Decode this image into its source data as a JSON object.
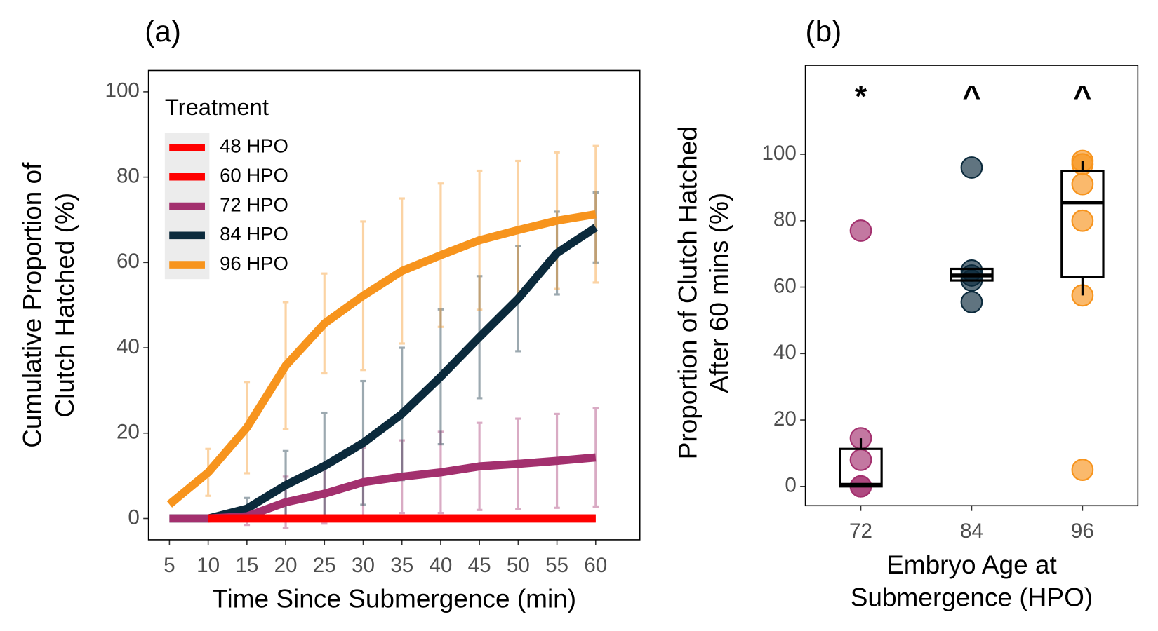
{
  "chart_data": [
    {
      "type": "line",
      "panel_label": "(a)",
      "x_label": "Time Since Submergence (min)",
      "y_label": [
        "Cumulative Proportion of",
        "Clutch Hatched (%)"
      ],
      "legend_title": "Treatment",
      "legend": "top-left",
      "x": [
        5,
        10,
        15,
        20,
        25,
        30,
        35,
        40,
        45,
        50,
        55,
        60
      ],
      "xlim": [
        2.3,
        65.7
      ],
      "xticks": [
        5,
        10,
        15,
        20,
        25,
        30,
        35,
        40,
        45,
        50,
        55,
        60
      ],
      "ylim": [
        -5,
        105
      ],
      "yticks": [
        0,
        20,
        40,
        60,
        80,
        100
      ],
      "series": [
        {
          "name": "48 HPO",
          "color": "#ff0000",
          "values": [
            null,
            0,
            0,
            0,
            0,
            0,
            0,
            0,
            0,
            0,
            0,
            0
          ]
        },
        {
          "name": "60 HPO",
          "color": "#ff0000",
          "values": [
            null,
            0,
            0,
            0,
            0,
            0,
            0,
            0,
            0,
            0,
            0,
            0
          ]
        },
        {
          "name": "72 HPO",
          "color": "#a3306e",
          "values": [
            0,
            0,
            0.5,
            3.8,
            5.8,
            8.5,
            9.8,
            10.8,
            12.2,
            12.8,
            13.5,
            14.3
          ],
          "errors": [
            null,
            null,
            2,
            6,
            7,
            8,
            8.5,
            9.5,
            10.2,
            10.6,
            11,
            11.5
          ]
        },
        {
          "name": "84 HPO",
          "color": "#0b2a3c",
          "values": [
            0,
            0,
            2.3,
            7.8,
            12.3,
            17.7,
            24.5,
            33.2,
            42.5,
            51.5,
            62.2,
            68.2
          ],
          "errors": [
            null,
            null,
            2.5,
            8,
            12.5,
            14.5,
            15.5,
            15.8,
            14.3,
            12.3,
            9.7,
            8.2
          ]
        },
        {
          "name": "96 HPO",
          "color": "#f7941d",
          "values": [
            3.3,
            10.8,
            21.3,
            35.8,
            45.7,
            52.2,
            58,
            61.7,
            65.2,
            67.6,
            69.8,
            71.3
          ],
          "errors": [
            null,
            5.5,
            10.7,
            14.9,
            11.7,
            17.4,
            17,
            16.8,
            16.3,
            16.2,
            16,
            16
          ]
        }
      ]
    },
    {
      "type": "box",
      "panel_label": "(b)",
      "x_label": [
        "Embryo Age at",
        "Submergence (HPO)"
      ],
      "y_label": [
        "Proportion of Clutch Hatched",
        "After 60 mins (%)"
      ],
      "categories": [
        "72",
        "84",
        "96"
      ],
      "colors": [
        "#a3306e",
        "#0b2a3c",
        "#f7941d"
      ],
      "annotations": [
        "*",
        "^",
        "^"
      ],
      "ylim": [
        -5.8,
        126.8
      ],
      "yticks": [
        0,
        20,
        40,
        60,
        80,
        100
      ],
      "boxes": [
        {
          "whisker_low": 0,
          "q1": 0,
          "median": 0.5,
          "q3": 11.3,
          "whisker_high": 14.5
        },
        {
          "whisker_low": 62,
          "q1": 62,
          "median": 63.5,
          "q3": 65.5,
          "whisker_high": 65.5
        },
        {
          "whisker_low": 57.5,
          "q1": 63,
          "median": 85.5,
          "q3": 95,
          "whisker_high": 98
        }
      ],
      "points": [
        [
          77,
          14.5,
          8,
          0,
          0
        ],
        [
          96,
          65,
          63.5,
          62,
          55.5
        ],
        [
          98,
          97,
          91,
          80,
          57.5,
          5
        ]
      ]
    }
  ]
}
